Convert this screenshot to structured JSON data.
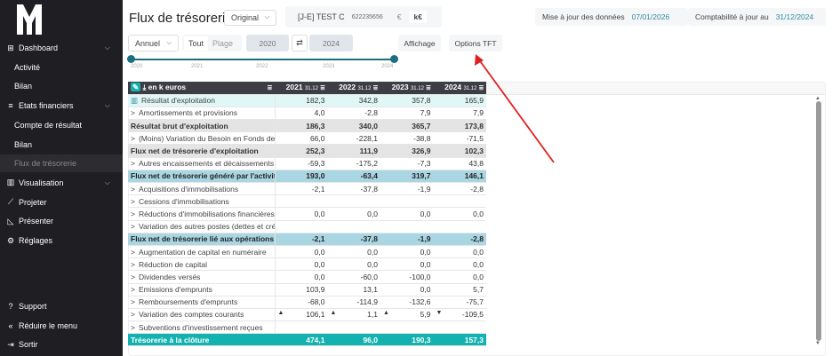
{
  "sidebar": {
    "logo": "M",
    "items": [
      {
        "label": "Dashboard",
        "icon": "grid-icon",
        "chevron": true
      },
      {
        "label": "Activité",
        "sub": true
      },
      {
        "label": "Bilan",
        "sub": true
      },
      {
        "label": "Etats financiers",
        "icon": "menu-icon",
        "chevron": true
      },
      {
        "label": "Compte de résultat",
        "sub": true
      },
      {
        "label": "Bilan",
        "sub": true
      },
      {
        "label": "Flux de trésorerie",
        "sub": true,
        "active": true
      },
      {
        "label": "Visualisation",
        "icon": "bar-chart-icon",
        "chevron": true
      },
      {
        "label": "Projeter",
        "icon": "line-chart-icon"
      },
      {
        "label": "Présenter",
        "icon": "presentation-icon"
      },
      {
        "label": "Réglages",
        "icon": "gear-icon"
      }
    ],
    "bottom": [
      {
        "label": "Support",
        "icon": "help-icon"
      },
      {
        "label": "Réduire le menu",
        "icon": "collapse-icon"
      },
      {
        "label": "Sortir",
        "icon": "logout-icon"
      }
    ]
  },
  "header": {
    "title": "Flux de trésorerie",
    "version": "Original",
    "company": "[J-E] TEST C",
    "siren": "622235656",
    "currency_options": [
      "€",
      "k€"
    ],
    "currency_selected": "k€",
    "update_label": "Mise à jour des données",
    "update_date": "07/01/2026",
    "compta_label": "Comptabilité à jour au",
    "compta_date": "31/12/2024"
  },
  "toolbar": {
    "period": "Annuel",
    "tout": "Tout",
    "plage": "Plage",
    "from": "2020",
    "to": "2024",
    "affichage": "Affichage",
    "options": "Options TFT"
  },
  "slider": {
    "ticks": [
      "2020",
      "2021",
      "2022",
      "2023",
      "2024"
    ],
    "range": [
      "2020",
      "2024"
    ]
  },
  "table": {
    "unit_label": "en k euros",
    "columns": [
      {
        "year": "2021",
        "date": "31.12"
      },
      {
        "year": "2022",
        "date": "31.12"
      },
      {
        "year": "2023",
        "date": "31.12"
      },
      {
        "year": "2024",
        "date": "31.12"
      }
    ],
    "rows": [
      {
        "label": "Résultat d'exploitation",
        "type": "hl",
        "values": [
          "182,3",
          "342,8",
          "357,8",
          "165,9"
        ]
      },
      {
        "label": "Amortissements et provisions",
        "exp": true,
        "values": [
          "4,0",
          "-2,8",
          "7,9",
          "7,9"
        ]
      },
      {
        "label": "Résultat brut d'exploitation",
        "type": "bold",
        "values": [
          "186,3",
          "340,0",
          "365,7",
          "173,8"
        ]
      },
      {
        "label": "(Moins) Variation du Besoin en Fonds de Roulement",
        "exp": true,
        "values": [
          "66,0",
          "-228,1",
          "-38,8",
          "-71,5"
        ]
      },
      {
        "label": "Flux net de trésorerie d'exploitation",
        "type": "bold",
        "values": [
          "252,3",
          "111,9",
          "326,9",
          "102,3"
        ]
      },
      {
        "label": "Autres encaissements et décaissements liés",
        "exp": true,
        "values": [
          "-59,3",
          "-175,2",
          "-7,3",
          "43,8"
        ]
      },
      {
        "label": "Flux net de trésorerie généré par l'activité",
        "type": "blue",
        "values": [
          "193,0",
          "-63,4",
          "319,7",
          "146,1"
        ]
      },
      {
        "label": "Acquisitions d'immobilisations",
        "exp": true,
        "values": [
          "-2,1",
          "-37,8",
          "-1,9",
          "-2,8"
        ]
      },
      {
        "label": "Cessions d'immobilisations",
        "exp": true,
        "values": [
          "",
          "",
          "",
          ""
        ]
      },
      {
        "label": "Réductions d'immobilisations financières",
        "exp": true,
        "values": [
          "0,0",
          "0,0",
          "0,0",
          "0,0"
        ]
      },
      {
        "label": "Variation des autres postes (dettes et créances)",
        "exp": true,
        "values": [
          "",
          "",
          "",
          ""
        ]
      },
      {
        "label": "Flux net de trésorerie lié aux opérations d'investissement",
        "type": "blue",
        "values": [
          "-2,1",
          "-37,8",
          "-1,9",
          "-2,8"
        ]
      },
      {
        "label": "Augmentation de capital en numéraire",
        "exp": true,
        "values": [
          "0,0",
          "0,0",
          "0,0",
          "0,0"
        ]
      },
      {
        "label": "Réduction de capital",
        "exp": true,
        "values": [
          "0,0",
          "0,0",
          "0,0",
          "0,0"
        ]
      },
      {
        "label": "Dividendes versés",
        "exp": true,
        "values": [
          "0,0",
          "-60,0",
          "-100,0",
          "0,0"
        ]
      },
      {
        "label": "Emissions d'emprunts",
        "exp": true,
        "values": [
          "103,9",
          "13,1",
          "0,0",
          "5,7"
        ]
      },
      {
        "label": "Remboursements d'emprunts",
        "exp": true,
        "values": [
          "-68,0",
          "-114,9",
          "-132,6",
          "-75,7"
        ]
      },
      {
        "label": "Variation des comptes courants",
        "exp": true,
        "values": [
          "106,1",
          "1,1",
          "5,9",
          "-109,5"
        ],
        "arrows": [
          "up",
          "up",
          "up",
          "down"
        ]
      },
      {
        "label": "Subventions d'investissement reçues",
        "exp": true,
        "values": [
          "",
          "",
          "",
          ""
        ]
      }
    ],
    "footer": {
      "label": "Trésorerie à la clôture",
      "values": [
        "474,1",
        "96,0",
        "190,3",
        "157,3"
      ]
    }
  },
  "colors": {
    "accent": "#2e8a9e",
    "footer": "#13b2b0",
    "blue_row": "#a9d6e2",
    "annotation_arrow": "#e02020"
  }
}
